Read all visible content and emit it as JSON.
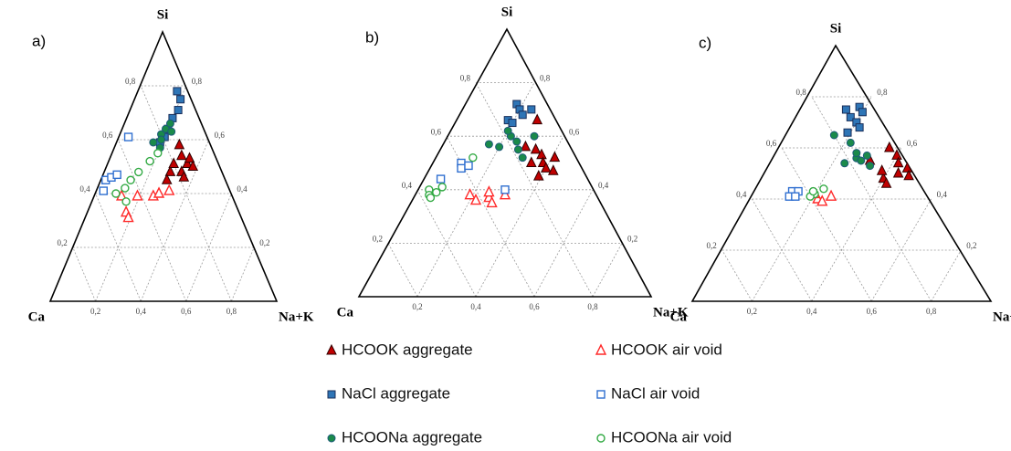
{
  "chart_data": [
    {
      "type": "ternary",
      "label": "a)",
      "top_label": "Si",
      "left_label": "Ca",
      "right_label": "Na+K",
      "ticks": [
        {
          "value": 0.2,
          "label": "0,2"
        },
        {
          "value": 0.4,
          "label": "0,4"
        },
        {
          "value": 0.6,
          "label": "0,6"
        },
        {
          "value": 0.8,
          "label": "0,8"
        }
      ],
      "series": [
        {
          "si": [
            0.58,
            0.54,
            0.51,
            0.48,
            0.53,
            0.48,
            0.51,
            0.46,
            0.45,
            0.5
          ],
          "nak": [
            0.28,
            0.31,
            0.35,
            0.34,
            0.35,
            0.29,
            0.29,
            0.36,
            0.29,
            0.38
          ]
        },
        {
          "si": [
            0.39,
            0.39,
            0.39,
            0.4,
            0.41,
            0.33,
            0.31
          ],
          "nak": [
            0.12,
            0.19,
            0.26,
            0.28,
            0.32,
            0.17,
            0.19
          ]
        },
        {
          "si": [
            0.78,
            0.75,
            0.71,
            0.68,
            0.64,
            0.61,
            0.59
          ],
          "nak": [
            0.17,
            0.2,
            0.21,
            0.2,
            0.2,
            0.2,
            0.19
          ]
        },
        {
          "si": [
            0.61,
            0.45,
            0.46,
            0.47,
            0.41
          ],
          "nak": [
            0.04,
            0.02,
            0.04,
            0.06,
            0.03
          ]
        },
        {
          "si": [
            0.62,
            0.64,
            0.66,
            0.59,
            0.6,
            0.63,
            0.57
          ],
          "nak": [
            0.18,
            0.19,
            0.2,
            0.16,
            0.19,
            0.22,
            0.2
          ]
        },
        {
          "si": [
            0.52,
            0.48,
            0.45,
            0.42,
            0.4,
            0.55,
            0.37
          ],
          "nak": [
            0.18,
            0.15,
            0.13,
            0.12,
            0.09,
            0.2,
            0.15
          ]
        }
      ]
    },
    {
      "type": "ternary",
      "label": "b)",
      "top_label": "Si",
      "left_label": "Ca",
      "right_label": "Na+K",
      "ticks": [
        {
          "value": 0.2,
          "label": "0,2"
        },
        {
          "value": 0.4,
          "label": "0,4"
        },
        {
          "value": 0.6,
          "label": "0,6"
        },
        {
          "value": 0.8,
          "label": "0,8"
        }
      ],
      "series": [
        {
          "si": [
            0.55,
            0.53,
            0.5,
            0.48,
            0.52,
            0.47,
            0.56,
            0.5,
            0.66,
            0.45
          ],
          "nak": [
            0.33,
            0.36,
            0.38,
            0.4,
            0.41,
            0.43,
            0.29,
            0.34,
            0.28,
            0.39
          ]
        },
        {
          "si": [
            0.38,
            0.36,
            0.37,
            0.35,
            0.39,
            0.38
          ],
          "nak": [
            0.19,
            0.22,
            0.26,
            0.28,
            0.25,
            0.31
          ]
        },
        {
          "si": [
            0.72,
            0.7,
            0.68,
            0.66,
            0.65,
            0.7
          ],
          "nak": [
            0.18,
            0.2,
            0.22,
            0.18,
            0.2,
            0.24
          ]
        },
        {
          "si": [
            0.5,
            0.48,
            0.49,
            0.4,
            0.44
          ],
          "nak": [
            0.1,
            0.11,
            0.13,
            0.3,
            0.06
          ]
        },
        {
          "si": [
            0.6,
            0.58,
            0.56,
            0.62,
            0.55,
            0.52,
            0.6,
            0.57
          ],
          "nak": [
            0.22,
            0.25,
            0.2,
            0.2,
            0.27,
            0.3,
            0.3,
            0.16
          ]
        },
        {
          "si": [
            0.4,
            0.38,
            0.37,
            0.39,
            0.52,
            0.41
          ],
          "nak": [
            0.04,
            0.05,
            0.06,
            0.07,
            0.13,
            0.08
          ]
        }
      ]
    },
    {
      "type": "ternary",
      "label": "c)",
      "top_label": "Si",
      "left_label": "Ca",
      "right_label": "Na+K",
      "ticks": [
        {
          "value": 0.2,
          "label": "0,2"
        },
        {
          "value": 0.4,
          "label": "0,4"
        },
        {
          "value": 0.6,
          "label": "0,6"
        },
        {
          "value": 0.8,
          "label": "0,8"
        }
      ],
      "series": [
        {
          "si": [
            0.6,
            0.57,
            0.54,
            0.52,
            0.5,
            0.48,
            0.46,
            0.51,
            0.55,
            0.49
          ],
          "nak": [
            0.36,
            0.4,
            0.42,
            0.46,
            0.44,
            0.4,
            0.42,
            0.38,
            0.32,
            0.48
          ]
        },
        {
          "si": [
            0.4,
            0.39,
            0.41,
            0.42
          ],
          "nak": [
            0.22,
            0.24,
            0.26,
            0.2
          ]
        },
        {
          "si": [
            0.76,
            0.74,
            0.72,
            0.7,
            0.68,
            0.75,
            0.66
          ],
          "nak": [
            0.18,
            0.2,
            0.17,
            0.2,
            0.22,
            0.14,
            0.19
          ]
        },
        {
          "si": [
            0.43,
            0.41,
            0.43,
            0.41
          ],
          "nak": [
            0.12,
            0.12,
            0.14,
            0.14
          ]
        },
        {
          "si": [
            0.62,
            0.57,
            0.56,
            0.55,
            0.58,
            0.54,
            0.65,
            0.53
          ],
          "nak": [
            0.22,
            0.3,
            0.27,
            0.29,
            0.26,
            0.24,
            0.15,
            0.33
          ]
        },
        {
          "si": [
            0.42,
            0.41,
            0.43,
            0.44
          ],
          "nak": [
            0.2,
            0.19,
            0.19,
            0.22
          ]
        }
      ]
    }
  ],
  "legend": [
    {
      "name": "HCOOK aggregate",
      "marker": "triangle",
      "filled": true,
      "color": "#c00000",
      "edge": "#300000"
    },
    {
      "name": "HCOOK air void",
      "marker": "triangle",
      "filled": false,
      "color": "#ff2a2a",
      "edge": "#ff2a2a"
    },
    {
      "name": "NaCl aggregate",
      "marker": "square",
      "filled": true,
      "color": "#2e75b6",
      "edge": "#1a2f5a"
    },
    {
      "name": "NaCl air void",
      "marker": "square",
      "filled": false,
      "color": "#2f6fd0",
      "edge": "#2f6fd0"
    },
    {
      "name": "HCOONa aggregate",
      "marker": "circle",
      "filled": true,
      "color": "#1a8a4a",
      "edge": "#1d5a7a"
    },
    {
      "name": "HCOONa air void",
      "marker": "circle",
      "filled": false,
      "color": "#33aa44",
      "edge": "#33aa44"
    }
  ]
}
